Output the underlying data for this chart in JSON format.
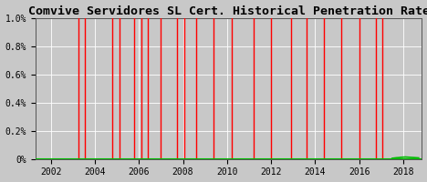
{
  "title": "Comvive Servidores SL Cert. Historical Penetration Rate",
  "title_fontsize": 9.5,
  "xmin": 2001.3,
  "xmax": 2018.85,
  "ymin": 0.0,
  "ymax": 1.0,
  "yticks": [
    0.0,
    0.2,
    0.4,
    0.6,
    0.8,
    1.0
  ],
  "yticklabels": [
    "0%",
    "0.2%",
    "0.4%",
    "0.6%",
    "0.8%",
    "1.0%"
  ],
  "xticks": [
    2002,
    2004,
    2006,
    2008,
    2010,
    2012,
    2014,
    2016,
    2018
  ],
  "background_color": "#c8c8c8",
  "plot_bg_color": "#c8c8c8",
  "grid_color": "#ffffff",
  "red_vlines": [
    2003.25,
    2003.55,
    2004.8,
    2005.1,
    2005.8,
    2006.1,
    2006.4,
    2007.0,
    2007.75,
    2008.05,
    2008.6,
    2009.4,
    2010.2,
    2011.2,
    2012.0,
    2012.9,
    2013.6,
    2014.4,
    2015.2,
    2016.0,
    2016.75,
    2017.05
  ],
  "green_baseline_x": [
    2001.3,
    2018.85
  ],
  "green_baseline_y": [
    0.0,
    0.0
  ],
  "green_data_x": [
    2017.5,
    2017.6,
    2017.7,
    2017.8,
    2017.9,
    2018.0,
    2018.1,
    2018.2,
    2018.3,
    2018.4,
    2018.5,
    2018.6,
    2018.7
  ],
  "green_data_y": [
    0.005,
    0.007,
    0.009,
    0.01,
    0.012,
    0.013,
    0.014,
    0.013,
    0.012,
    0.011,
    0.01,
    0.009,
    0.008
  ],
  "green_color": "#00bb00",
  "red_color": "#ff0000",
  "font_family": "monospace"
}
